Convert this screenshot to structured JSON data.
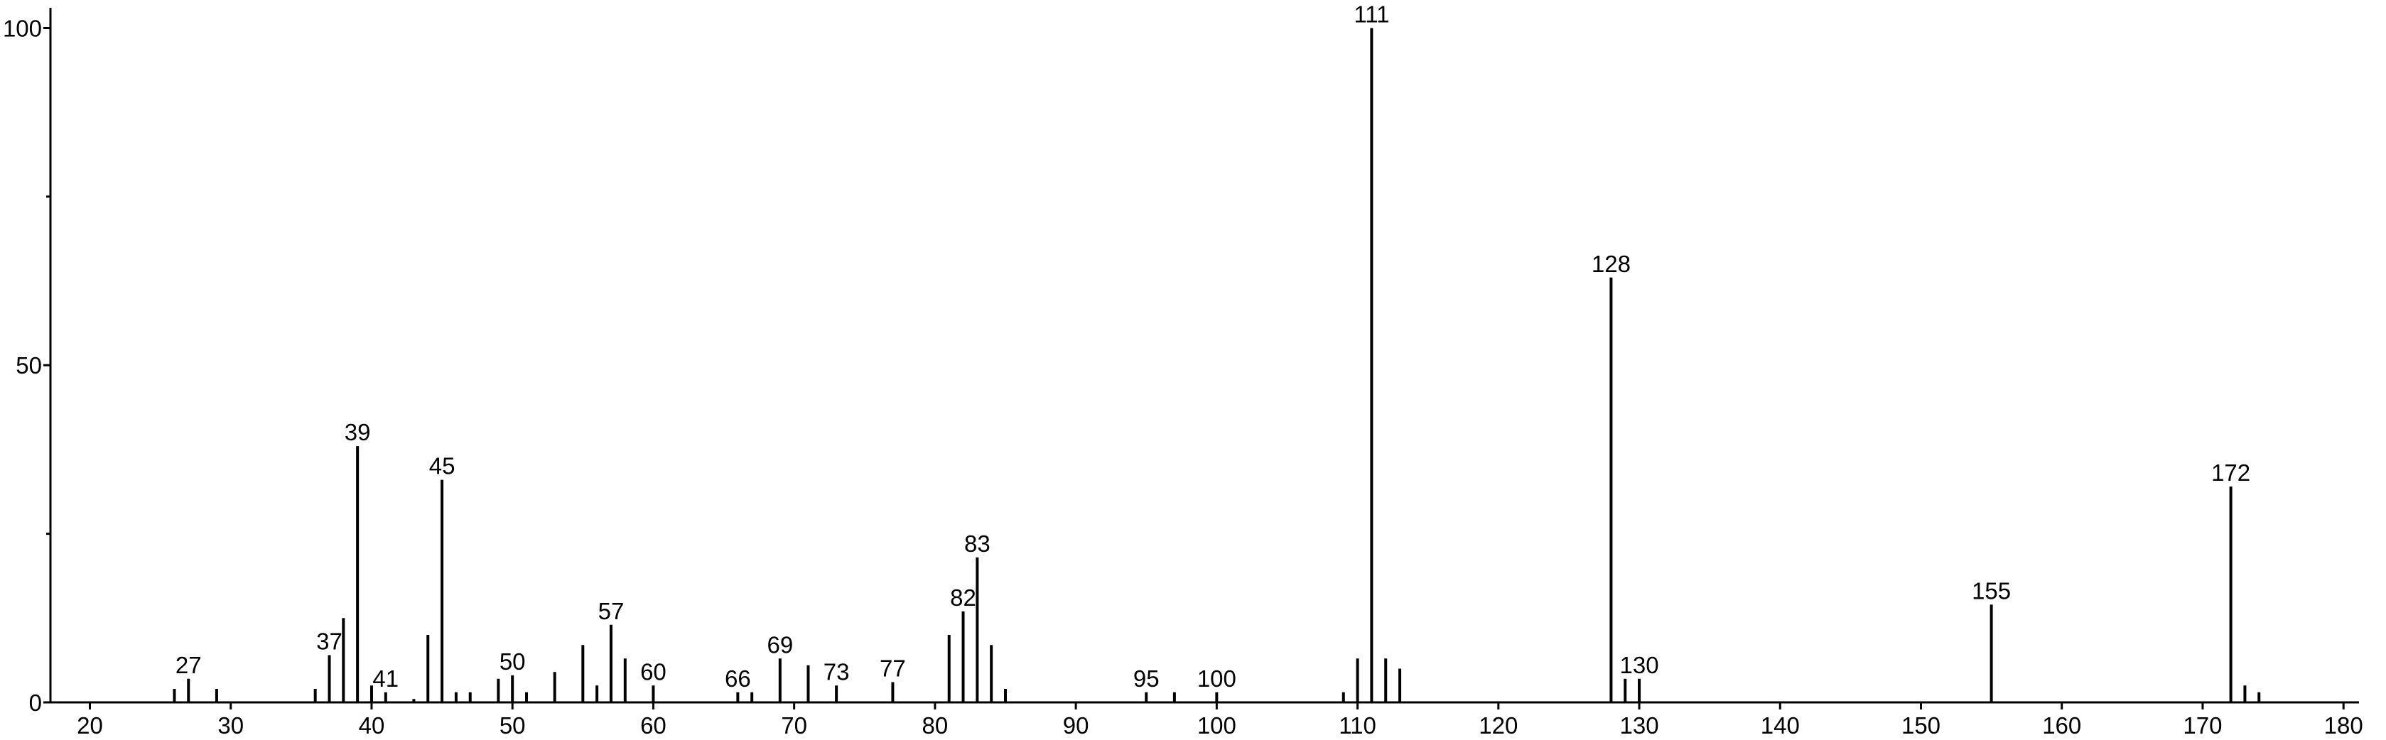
{
  "chart_data": {
    "type": "stem",
    "x": [
      26,
      27,
      29,
      36,
      37,
      38,
      39,
      40,
      41,
      43,
      44,
      45,
      46,
      47,
      49,
      50,
      51,
      53,
      55,
      56,
      57,
      58,
      60,
      66,
      67,
      69,
      71,
      73,
      77,
      81,
      82,
      83,
      84,
      85,
      95,
      97,
      100,
      109,
      110,
      111,
      112,
      113,
      128,
      129,
      130,
      155,
      172,
      173,
      174
    ],
    "values": [
      2,
      3.5,
      2,
      2,
      7,
      12.5,
      38,
      2.5,
      1.5,
      0.5,
      10,
      33,
      1.5,
      1.5,
      3.5,
      4,
      1.5,
      4.5,
      8.5,
      2.5,
      11.5,
      6.5,
      2.5,
      1.5,
      1.5,
      6.5,
      5.5,
      2.5,
      3,
      10,
      13.5,
      21.5,
      8.5,
      2,
      1.5,
      1.5,
      1.5,
      1.5,
      6.5,
      100,
      6.5,
      5,
      63,
      3.5,
      3.5,
      14.5,
      32,
      2.5,
      1.5
    ],
    "color": "#000000",
    "peak_labels": [
      27,
      37,
      39,
      41,
      45,
      50,
      57,
      60,
      66,
      69,
      73,
      77,
      82,
      83,
      95,
      100,
      111,
      128,
      130,
      155,
      172
    ],
    "xlim": [
      17.2,
      181.1
    ],
    "ylim": [
      0,
      103
    ],
    "xticks": [
      20,
      30,
      40,
      50,
      60,
      70,
      80,
      90,
      100,
      110,
      120,
      130,
      140,
      150,
      160,
      170,
      180
    ],
    "yticks": [
      0,
      50,
      100
    ],
    "yminorticks": [
      25,
      75
    ]
  }
}
